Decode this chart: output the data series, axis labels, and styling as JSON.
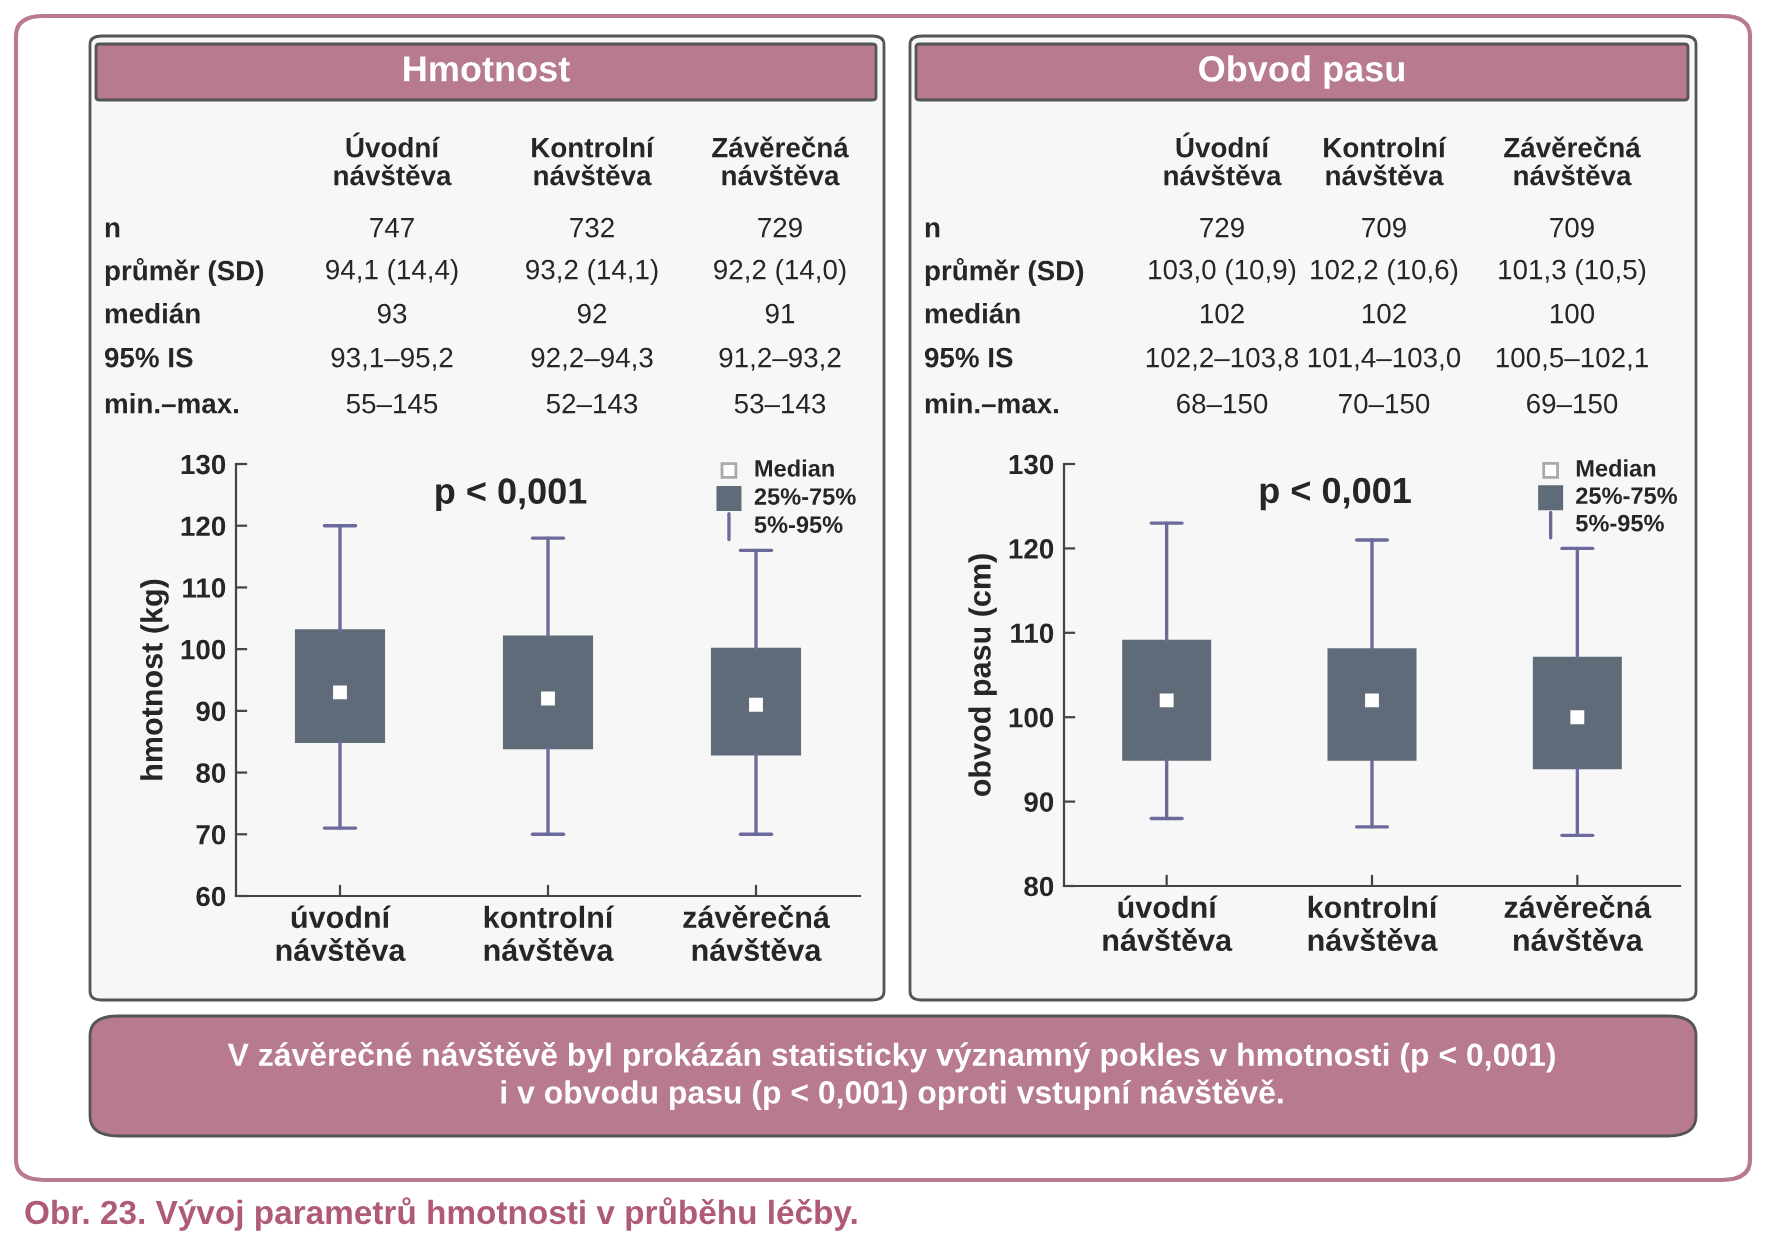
{
  "chart_data": [
    {
      "type": "other",
      "title": "Hmotnost",
      "categories": [
        "Úvodní\nnávštěva",
        "Kontrolní\nnávštěva",
        "Závěrečná\nnávštěva"
      ],
      "y_categories": [
        "n",
        "průměr (SD)",
        "medián",
        "95% IS",
        "min.–max."
      ],
      "cell_labels": [
        [
          "747",
          "732",
          "729"
        ],
        [
          "94,1 (14,4)",
          "93,2 (14,1)",
          "92,2 (14,0)"
        ],
        [
          "93",
          "92",
          "91"
        ],
        [
          "93,1–95,2",
          "92,2–94,3",
          "91,2–93,2"
        ],
        [
          "55–145",
          "52–143",
          "53–143"
        ]
      ]
    },
    {
      "type": "box",
      "categories": [
        "úvodní\nnávštěva",
        "kontrolní\nnávštěva",
        "závěrečná\nnávštěva"
      ],
      "ylabel": "hmotnost (kg)",
      "ylim": [
        60,
        130
      ],
      "yticks": [
        60,
        70,
        80,
        90,
        100,
        110,
        120,
        130
      ],
      "color": "#5f6b78",
      "annotations": [
        "p < 0,001",
        "Median",
        "25%-75%",
        "5%-95%"
      ],
      "boxes": [
        {
          "low": 71,
          "q1": 85,
          "median": 93,
          "q3": 103,
          "high": 120
        },
        {
          "low": 70,
          "q1": 84,
          "median": 92,
          "q3": 102,
          "high": 118
        },
        {
          "low": 70,
          "q1": 83,
          "median": 91,
          "q3": 100,
          "high": 116
        }
      ]
    },
    {
      "type": "other",
      "title": "Obvod pasu",
      "categories": [
        "Úvodní\nnávštěva",
        "Kontrolní\nnávštěva",
        "Závěrečná\nnávštěva"
      ],
      "y_categories": [
        "n",
        "průměr (SD)",
        "medián",
        "95% IS",
        "min.–max."
      ],
      "cell_labels": [
        [
          "729",
          "709",
          "709"
        ],
        [
          "103,0 (10,9)",
          "102,2 (10,6)",
          "101,3 (10,5)"
        ],
        [
          "102",
          "102",
          "100"
        ],
        [
          "102,2–103,8",
          "101,4–103,0",
          "100,5–102,1"
        ],
        [
          "68–150",
          "70–150",
          "69–150"
        ]
      ]
    },
    {
      "type": "box",
      "categories": [
        "úvodní\nnávštěva",
        "kontrolní\nnávštěva",
        "závěrečná\nnávštěva"
      ],
      "ylabel": "obvod pasu (cm)",
      "ylim": [
        80,
        130
      ],
      "yticks": [
        80,
        90,
        100,
        110,
        120,
        130
      ],
      "color": "#5f6b78",
      "annotations": [
        "p < 0,001",
        "Median",
        "25%-75%",
        "5%-95%"
      ],
      "boxes": [
        {
          "low": 88,
          "q1": 95,
          "median": 102,
          "q3": 109,
          "high": 123
        },
        {
          "low": 87,
          "q1": 95,
          "median": 102,
          "q3": 108,
          "high": 121
        },
        {
          "low": 86,
          "q1": 94,
          "median": 100,
          "q3": 107,
          "high": 120
        }
      ]
    },
    {
      "type": "other",
      "annotations": [
        "V závěrečné návštěvě byl prokázán statisticky významný pokles v hmotnosti (p < 0,001)\ni v obvodu pasu (p < 0,001) oproti vstupní návštěvě.",
        "Obr. 23. Vývoj parametrů hmotnosti v průběhu léčby."
      ]
    }
  ]
}
